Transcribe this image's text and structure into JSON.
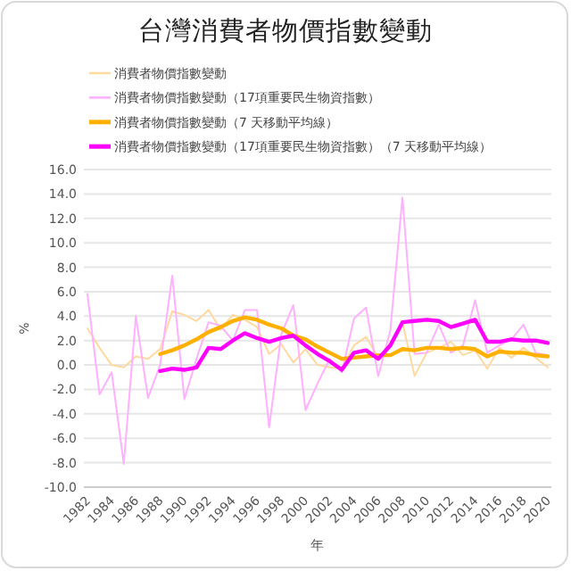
{
  "chart_data": {
    "type": "line",
    "title": "台灣消費者物價指數變動",
    "xlabel": "年",
    "ylabel": "%",
    "categories": [
      "1982",
      null,
      "1984",
      null,
      "1986",
      null,
      "1988",
      null,
      "1990",
      null,
      "1992",
      null,
      "1994",
      null,
      "1996",
      null,
      "1998",
      null,
      "2000",
      null,
      "2002",
      null,
      "2004",
      null,
      "2006",
      null,
      "2008",
      null,
      "2010",
      null,
      "2012",
      null,
      "2014",
      null,
      "2016",
      null,
      "2018",
      null,
      "2020"
    ],
    "series": [
      {
        "name": "消費者物價指數變動",
        "color": "#ffd9a0",
        "values": [
          3.0,
          1.4,
          0.0,
          -0.2,
          0.7,
          0.5,
          1.3,
          4.4,
          4.1,
          3.6,
          4.5,
          2.9,
          4.1,
          3.7,
          3.1,
          0.9,
          1.7,
          0.2,
          1.3,
          0.0,
          -0.2,
          -0.3,
          1.6,
          2.3,
          0.6,
          1.8,
          3.5,
          -0.9,
          1.0,
          1.4,
          1.9,
          0.8,
          1.2,
          -0.3,
          1.4,
          0.6,
          1.4,
          0.6,
          -0.2
        ]
      },
      {
        "name": "消費者物價指數變動（17項重要民生物資指數）",
        "color": "#ffb0ff",
        "values": [
          5.8,
          -2.4,
          -0.6,
          -8.1,
          4.0,
          -2.7,
          0.0,
          7.3,
          -2.8,
          0.5,
          3.5,
          3.2,
          2.0,
          4.5,
          4.5,
          -5.1,
          2.5,
          4.9,
          -3.7,
          -1.5,
          0.5,
          -0.6,
          3.8,
          4.7,
          -0.9,
          2.8,
          13.7,
          0.9,
          1.0,
          3.3,
          1.0,
          1.6,
          5.3,
          1.0,
          1.6,
          2.1,
          3.3,
          1.0,
          0.8
        ]
      },
      {
        "name": "消費者物價指數變動（7 天移動平均線）",
        "color": "#ffb000",
        "values": [
          null,
          null,
          null,
          null,
          null,
          null,
          0.9,
          1.2,
          1.6,
          2.1,
          2.7,
          3.1,
          3.6,
          3.9,
          3.7,
          3.3,
          3.0,
          2.4,
          2.1,
          1.5,
          1.0,
          0.5,
          0.6,
          0.7,
          0.8,
          0.8,
          1.3,
          1.2,
          1.4,
          1.4,
          1.3,
          1.4,
          1.3,
          0.7,
          1.1,
          1.0,
          1.0,
          0.8,
          0.7
        ]
      },
      {
        "name": "消費者物價指數變動（17項重要民生物資指數）（7 天移動平均線）",
        "color": "#ff00ff",
        "values": [
          null,
          null,
          null,
          null,
          null,
          null,
          -0.5,
          -0.3,
          -0.4,
          -0.2,
          1.4,
          1.3,
          2.0,
          2.6,
          2.2,
          1.9,
          2.2,
          2.4,
          1.6,
          0.9,
          0.3,
          -0.4,
          1.0,
          1.2,
          0.5,
          1.6,
          3.5,
          3.6,
          3.7,
          3.6,
          3.1,
          3.4,
          3.7,
          1.9,
          1.9,
          2.1,
          2.0,
          2.0,
          1.8
        ]
      }
    ],
    "ylim": [
      -10,
      16
    ],
    "yticks": [
      {
        "value": -10,
        "label": "-10.0"
      },
      {
        "value": -8,
        "label": "-8.0"
      },
      {
        "value": -6,
        "label": "-6.0"
      },
      {
        "value": -4,
        "label": "-4.0"
      },
      {
        "value": -2,
        "label": "-2.0"
      },
      {
        "value": 0,
        "label": "0.0"
      },
      {
        "value": 2,
        "label": "2.0"
      },
      {
        "value": 4,
        "label": "4.0"
      },
      {
        "value": 6,
        "label": "6.0"
      },
      {
        "value": 8,
        "label": "8.0"
      },
      {
        "value": 10,
        "label": "10.0"
      },
      {
        "value": 12,
        "label": "12.0"
      },
      {
        "value": 14,
        "label": "14.0"
      },
      {
        "value": 16,
        "label": "16.0"
      }
    ],
    "grid": "y",
    "legend": "top",
    "marker": "none"
  }
}
